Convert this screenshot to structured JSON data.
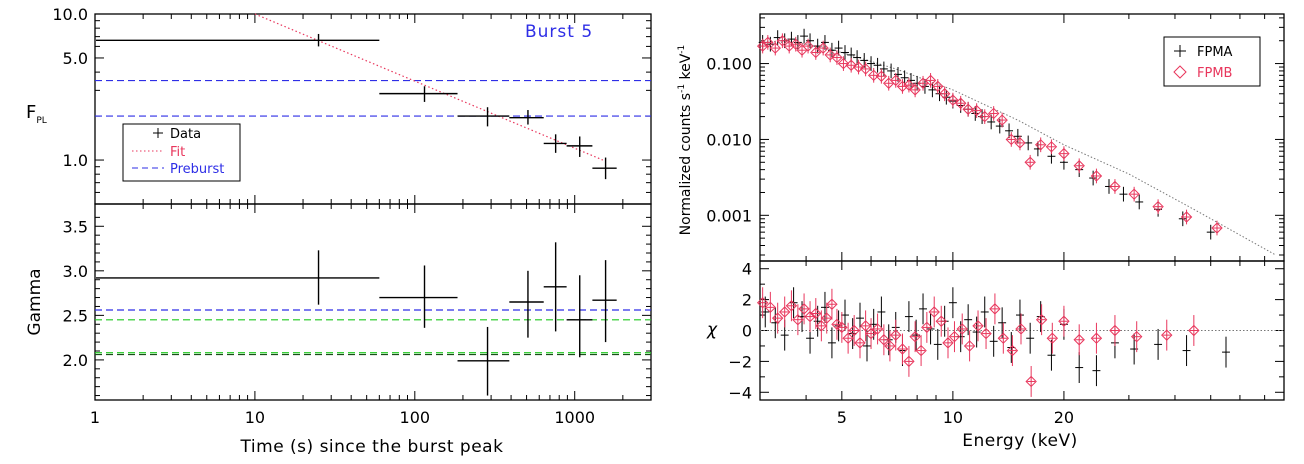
{
  "chart_data": [
    {
      "type": "scatter",
      "panel": "left-top",
      "title": "",
      "annotation": "Burst 5",
      "xlabel": "Time (s) since the burst peak",
      "ylabel": "F_PL",
      "ylabel_main": "F",
      "ylabel_sub": "PL",
      "xscale": "log",
      "yscale": "log",
      "xlim": [
        1,
        3000
      ],
      "ylim": [
        0.5,
        10.0
      ],
      "x_ticks": [
        1,
        10,
        100,
        1000
      ],
      "x_tick_labels": [
        "1",
        "10",
        "100",
        "1000"
      ],
      "y_ticks": [
        1.0,
        5.0,
        10.0
      ],
      "y_tick_labels": [
        "1.0",
        "5.0",
        "10.0"
      ],
      "legend_position": "bottom-left",
      "legend": {
        "data": "Data",
        "fit": "Fit",
        "preburst": "Preburst"
      },
      "colors": {
        "data": "#000000",
        "fit": "#e8365c",
        "preburst": "#2e2ee6"
      },
      "data": [
        {
          "x": 25,
          "x_lo": 1,
          "x_hi": 60,
          "y": 6.6,
          "y_lo": 6.0,
          "y_hi": 7.3
        },
        {
          "x": 115,
          "x_lo": 60,
          "x_hi": 185,
          "y": 2.85,
          "y_lo": 2.5,
          "y_hi": 3.2
        },
        {
          "x": 285,
          "x_lo": 185,
          "x_hi": 390,
          "y": 2.0,
          "y_lo": 1.7,
          "y_hi": 2.3
        },
        {
          "x": 510,
          "x_lo": 390,
          "x_hi": 640,
          "y": 1.95,
          "y_lo": 1.75,
          "y_hi": 2.2
        },
        {
          "x": 760,
          "x_lo": 640,
          "x_hi": 890,
          "y": 1.3,
          "y_lo": 1.12,
          "y_hi": 1.5
        },
        {
          "x": 1075,
          "x_lo": 890,
          "x_hi": 1290,
          "y": 1.25,
          "y_lo": 1.05,
          "y_hi": 1.45
        },
        {
          "x": 1560,
          "x_lo": 1290,
          "x_hi": 1830,
          "y": 0.88,
          "y_lo": 0.74,
          "y_hi": 1.04
        }
      ],
      "fit": {
        "x": [
          10,
          1500
        ],
        "y": [
          10.5,
          1.0
        ]
      },
      "preburst_levels": [
        3.5,
        2.0
      ]
    },
    {
      "type": "scatter",
      "panel": "left-bottom",
      "title": "",
      "xlabel": "Time (s) since the burst peak",
      "ylabel": "Gamma",
      "xscale": "log",
      "xlim": [
        1,
        3000
      ],
      "ylim": [
        1.55,
        3.75
      ],
      "y_ticks": [
        2.0,
        2.5,
        3.0,
        3.5
      ],
      "y_tick_labels": [
        "2.0",
        "2.5",
        "3.0",
        "3.5"
      ],
      "colors": {
        "data": "#000000",
        "blue": "#2e2ee6",
        "green": "#1ec81e"
      },
      "data": [
        {
          "x": 25,
          "x_lo": 1,
          "x_hi": 60,
          "y": 2.92,
          "y_lo": 2.62,
          "y_hi": 3.23
        },
        {
          "x": 115,
          "x_lo": 60,
          "x_hi": 185,
          "y": 2.7,
          "y_lo": 2.36,
          "y_hi": 3.06
        },
        {
          "x": 285,
          "x_lo": 185,
          "x_hi": 390,
          "y": 1.99,
          "y_lo": 1.6,
          "y_hi": 2.37
        },
        {
          "x": 510,
          "x_lo": 390,
          "x_hi": 640,
          "y": 2.65,
          "y_lo": 2.25,
          "y_hi": 3.0
        },
        {
          "x": 760,
          "x_lo": 640,
          "x_hi": 890,
          "y": 2.82,
          "y_lo": 2.32,
          "y_hi": 3.32
        },
        {
          "x": 1075,
          "x_lo": 890,
          "x_hi": 1290,
          "y": 2.45,
          "y_lo": 2.03,
          "y_hi": 2.95
        },
        {
          "x": 1560,
          "x_lo": 1290,
          "x_hi": 1830,
          "y": 2.67,
          "y_lo": 2.2,
          "y_hi": 3.12
        }
      ],
      "blue_level": 2.56,
      "green_levels": [
        2.45,
        2.08
      ],
      "green_dark_level": 2.06
    },
    {
      "type": "scatter",
      "panel": "right-top",
      "title": "",
      "xlabel": "Energy (keV)",
      "ylabel": "Normalized counts s^-1 keV^-1",
      "ylabel_text": "Normalized counts s",
      "ylabel_sup1": "-1",
      "ylabel_mid": " keV",
      "ylabel_sup2": "-1",
      "xscale": "log",
      "yscale": "log",
      "xlim": [
        3,
        79
      ],
      "ylim": [
        0.00025,
        0.45
      ],
      "y_ticks": [
        0.001,
        0.01,
        0.1
      ],
      "y_tick_labels": [
        "0.001",
        "0.010",
        "0.100"
      ],
      "legend_position": "top-right",
      "legend": {
        "fpma": "FPMA",
        "fpmb": "FPMB"
      },
      "colors": {
        "fpma": "#000000",
        "fpmb": "#e8365c",
        "model": "#777777"
      },
      "model": {
        "x": [
          3.0,
          4.0,
          5.0,
          7.0,
          10.0,
          15.0,
          20.0,
          30.0,
          45.0,
          60.0,
          75.0
        ],
        "y": [
          0.2,
          0.18,
          0.14,
          0.085,
          0.045,
          0.018,
          0.0085,
          0.0035,
          0.0012,
          0.00055,
          0.0003
        ]
      },
      "fpma": [
        [
          3.05,
          0.19
        ],
        [
          3.2,
          0.18
        ],
        [
          3.35,
          0.22
        ],
        [
          3.5,
          0.2
        ],
        [
          3.65,
          0.21
        ],
        [
          3.8,
          0.19
        ],
        [
          3.95,
          0.23
        ],
        [
          4.1,
          0.2
        ],
        [
          4.3,
          0.17
        ],
        [
          4.5,
          0.19
        ],
        [
          4.7,
          0.15
        ],
        [
          4.9,
          0.16
        ],
        [
          5.1,
          0.14
        ],
        [
          5.3,
          0.13
        ],
        [
          5.5,
          0.12
        ],
        [
          5.75,
          0.11
        ],
        [
          6.0,
          0.1
        ],
        [
          6.25,
          0.095
        ],
        [
          6.5,
          0.085
        ],
        [
          6.8,
          0.08
        ],
        [
          7.1,
          0.072
        ],
        [
          7.4,
          0.065
        ],
        [
          7.7,
          0.06
        ],
        [
          8.0,
          0.055
        ],
        [
          8.4,
          0.05
        ],
        [
          8.8,
          0.045
        ],
        [
          9.2,
          0.04
        ],
        [
          9.6,
          0.036
        ],
        [
          10.0,
          0.032
        ],
        [
          10.5,
          0.028
        ],
        [
          11.0,
          0.025
        ],
        [
          11.5,
          0.022
        ],
        [
          12.0,
          0.02
        ],
        [
          12.7,
          0.017
        ],
        [
          13.4,
          0.015
        ],
        [
          14.2,
          0.013
        ],
        [
          15.0,
          0.011
        ],
        [
          16.0,
          0.009
        ],
        [
          17.0,
          0.0075
        ],
        [
          18.5,
          0.006
        ],
        [
          20.0,
          0.005
        ],
        [
          22.0,
          0.004
        ],
        [
          24.0,
          0.0031
        ],
        [
          26.5,
          0.0024
        ],
        [
          29.0,
          0.0019
        ],
        [
          32.0,
          0.0015
        ],
        [
          36.0,
          0.0012
        ],
        [
          42.0,
          0.0009
        ],
        [
          50.0,
          0.0006
        ]
      ],
      "fpmb": [
        [
          3.05,
          0.17
        ],
        [
          3.15,
          0.19
        ],
        [
          3.3,
          0.16
        ],
        [
          3.45,
          0.2
        ],
        [
          3.6,
          0.17
        ],
        [
          3.75,
          0.18
        ],
        [
          3.9,
          0.15
        ],
        [
          4.05,
          0.17
        ],
        [
          4.25,
          0.14
        ],
        [
          4.45,
          0.16
        ],
        [
          4.65,
          0.13
        ],
        [
          4.85,
          0.12
        ],
        [
          5.05,
          0.1
        ],
        [
          5.3,
          0.095
        ],
        [
          5.55,
          0.09
        ],
        [
          5.8,
          0.085
        ],
        [
          6.1,
          0.07
        ],
        [
          6.4,
          0.068
        ],
        [
          6.7,
          0.055
        ],
        [
          7.0,
          0.06
        ],
        [
          7.3,
          0.05
        ],
        [
          7.6,
          0.052
        ],
        [
          7.9,
          0.045
        ],
        [
          8.3,
          0.055
        ],
        [
          8.7,
          0.06
        ],
        [
          9.1,
          0.05
        ],
        [
          9.5,
          0.04
        ],
        [
          10.0,
          0.033
        ],
        [
          10.5,
          0.03
        ],
        [
          11.0,
          0.025
        ],
        [
          11.6,
          0.024
        ],
        [
          12.2,
          0.02
        ],
        [
          12.9,
          0.022
        ],
        [
          13.6,
          0.018
        ],
        [
          14.4,
          0.01
        ],
        [
          15.2,
          0.009
        ],
        [
          16.2,
          0.005
        ],
        [
          17.3,
          0.0085
        ],
        [
          18.5,
          0.008
        ],
        [
          20.0,
          0.0065
        ],
        [
          22.0,
          0.0045
        ],
        [
          24.5,
          0.0033
        ],
        [
          27.5,
          0.0024
        ],
        [
          31.0,
          0.0019
        ],
        [
          36.0,
          0.0013
        ],
        [
          43.0,
          0.00095
        ],
        [
          52.0,
          0.00068
        ]
      ]
    },
    {
      "type": "scatter",
      "panel": "right-bottom",
      "title": "",
      "xlabel": "Energy (keV)",
      "ylabel": "χ",
      "xscale": "log",
      "xlim": [
        3,
        79
      ],
      "ylim": [
        -4.5,
        4.5
      ],
      "x_ticks": [
        5,
        10,
        20
      ],
      "x_tick_labels": [
        "5",
        "10",
        "20"
      ],
      "y_ticks": [
        -4,
        -2,
        0,
        2,
        4
      ],
      "y_tick_labels": [
        "−4",
        "−2",
        "0",
        "2",
        "4"
      ],
      "colors": {
        "fpma": "#000000",
        "fpmb": "#e8365c",
        "model": "#777777"
      },
      "fpma": [
        [
          3.1,
          1.2
        ],
        [
          3.3,
          0.5
        ],
        [
          3.5,
          -0.3
        ],
        [
          3.7,
          1.8
        ],
        [
          3.9,
          0.9
        ],
        [
          4.1,
          -0.5
        ],
        [
          4.3,
          0.6
        ],
        [
          4.5,
          1.5
        ],
        [
          4.7,
          -0.8
        ],
        [
          4.9,
          0.3
        ],
        [
          5.1,
          1.0
        ],
        [
          5.35,
          -0.2
        ],
        [
          5.6,
          0.8
        ],
        [
          5.85,
          -1.0
        ],
        [
          6.1,
          0.4
        ],
        [
          6.4,
          1.2
        ],
        [
          6.7,
          -0.6
        ],
        [
          7.0,
          0.2
        ],
        [
          7.3,
          -1.3
        ],
        [
          7.6,
          0.9
        ],
        [
          7.95,
          -0.3
        ],
        [
          8.3,
          1.4
        ],
        [
          8.7,
          0.1
        ],
        [
          9.1,
          -0.9
        ],
        [
          9.5,
          0.6
        ],
        [
          10.0,
          1.8
        ],
        [
          10.5,
          -0.4
        ],
        [
          11.0,
          0.7
        ],
        [
          11.6,
          -0.1
        ],
        [
          12.2,
          1.2
        ],
        [
          12.9,
          -0.7
        ],
        [
          13.6,
          0.5
        ],
        [
          14.4,
          -1.1
        ],
        [
          15.2,
          1.0
        ],
        [
          16.2,
          -0.5
        ],
        [
          17.3,
          0.9
        ],
        [
          18.5,
          -1.6
        ],
        [
          20.0,
          0.4
        ],
        [
          22.0,
          -2.4
        ],
        [
          24.5,
          -2.6
        ],
        [
          27.5,
          -0.8
        ],
        [
          31.0,
          -1.2
        ],
        [
          36.0,
          -0.9
        ],
        [
          43.0,
          -1.3
        ],
        [
          55.0,
          -1.4
        ]
      ],
      "fpmb": [
        [
          3.05,
          1.8
        ],
        [
          3.2,
          1.5
        ],
        [
          3.35,
          0.8
        ],
        [
          3.5,
          1.2
        ],
        [
          3.65,
          1.6
        ],
        [
          3.8,
          0.7
        ],
        [
          3.95,
          1.4
        ],
        [
          4.1,
          0.9
        ],
        [
          4.25,
          1.1
        ],
        [
          4.4,
          0.3
        ],
        [
          4.55,
          0.8
        ],
        [
          4.7,
          1.7
        ],
        [
          4.85,
          0.4
        ],
        [
          5.0,
          0.2
        ],
        [
          5.2,
          -0.5
        ],
        [
          5.4,
          0.0
        ],
        [
          5.6,
          -0.8
        ],
        [
          5.8,
          0.3
        ],
        [
          6.0,
          -0.2
        ],
        [
          6.25,
          0.1
        ],
        [
          6.5,
          -0.6
        ],
        [
          6.75,
          -1.0
        ],
        [
          7.0,
          -0.3
        ],
        [
          7.3,
          -1.2
        ],
        [
          7.6,
          -2.0
        ],
        [
          7.9,
          -0.4
        ],
        [
          8.2,
          -1.3
        ],
        [
          8.5,
          0.2
        ],
        [
          8.9,
          1.2
        ],
        [
          9.3,
          0.6
        ],
        [
          9.7,
          -0.8
        ],
        [
          10.1,
          -0.4
        ],
        [
          10.6,
          0.1
        ],
        [
          11.1,
          -1.0
        ],
        [
          11.7,
          0.3
        ],
        [
          12.3,
          -0.2
        ],
        [
          13.0,
          1.4
        ],
        [
          13.7,
          -0.5
        ],
        [
          14.5,
          -1.3
        ],
        [
          15.3,
          0.1
        ],
        [
          16.3,
          -3.3
        ],
        [
          17.4,
          0.7
        ],
        [
          18.6,
          -0.5
        ],
        [
          20.0,
          0.6
        ],
        [
          22.0,
          -0.6
        ],
        [
          24.5,
          -0.5
        ],
        [
          27.5,
          0.0
        ],
        [
          31.5,
          -0.4
        ],
        [
          38.0,
          -0.3
        ],
        [
          45.0,
          0.0
        ]
      ]
    }
  ]
}
